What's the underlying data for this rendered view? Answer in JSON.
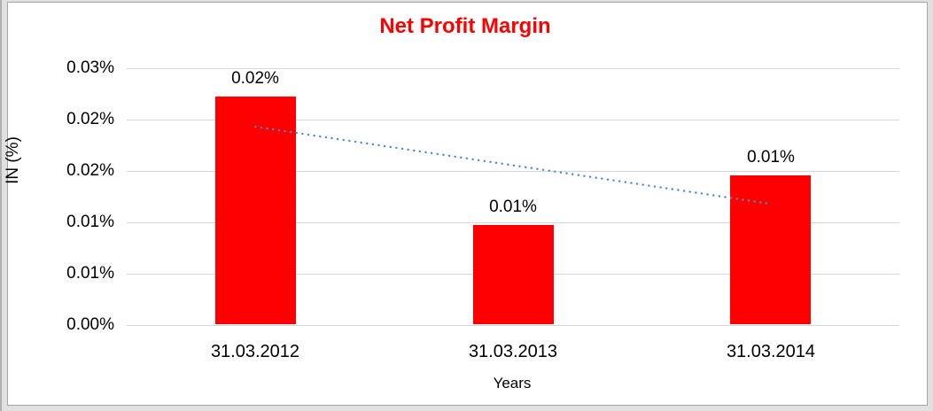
{
  "chart_data": {
    "type": "bar",
    "title": "Net Profit Margin",
    "title_color": "#ff0000",
    "categories": [
      "31.03.2012",
      "31.03.2013",
      "31.03.2014"
    ],
    "values": [
      0.0222,
      0.0097,
      0.0146
    ],
    "data_labels": [
      "0.02%",
      "0.01%",
      "0.01%"
    ],
    "bar_color": "#ff0000",
    "xlabel": "Years",
    "ylabel": "IN (%)",
    "ylim": [
      0,
      0.025
    ],
    "ytick_values": [
      0,
      0.005,
      0.01,
      0.015,
      0.02,
      0.025
    ],
    "ytick_labels": [
      "0.00%",
      "0.01%",
      "0.01%",
      "0.02%",
      "0.02%",
      "0.03%"
    ],
    "grid": true,
    "legend_position": "none",
    "trendline": {
      "type": "linear",
      "style": "dotted",
      "color": "#4e8bc8",
      "start_value": 0.0193,
      "end_value": 0.0118
    }
  },
  "colors": {
    "gridline": "#d6d6d6",
    "text": "#000000",
    "outer_background": "#e0e0e0",
    "chart_background": "#ffffff",
    "chart_border": "#a6a6a6"
  }
}
